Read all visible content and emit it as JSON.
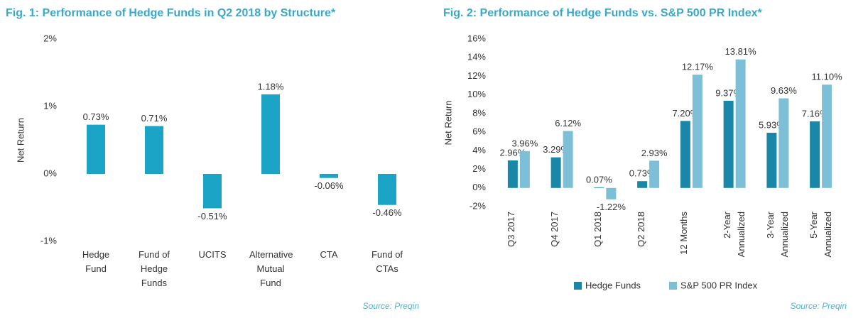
{
  "chart_data": [
    {
      "type": "bar",
      "title": "Fig. 1: Performance of Hedge Funds in Q2 2018 by Structure*",
      "ylabel": "Net Return",
      "categories": [
        "Hedge Fund",
        "Fund of Hedge Funds",
        "UCITS",
        "Alternative Mutual Fund",
        "CTA",
        "Fund of CTAs"
      ],
      "values": [
        0.73,
        0.71,
        -0.51,
        1.18,
        -0.06,
        -0.46
      ],
      "value_labels": [
        "0.73%",
        "0.71%",
        "-0.51%",
        "1.18%",
        "-0.06%",
        "-0.46%"
      ],
      "color": "#1ba4c6",
      "ylim": [
        -1,
        2
      ],
      "yticks": [
        {
          "value": 2,
          "label": "2%"
        },
        {
          "value": 1,
          "label": "1%"
        },
        {
          "value": 0,
          "label": "0%"
        },
        {
          "value": -1,
          "label": "-1%"
        }
      ],
      "source": "Source: Preqin"
    },
    {
      "type": "bar",
      "title": "Fig. 2: Performance of Hedge Funds vs. S&P 500 PR Index*",
      "ylabel": "Net Return",
      "categories": [
        "Q3 2017",
        "Q4 2017",
        "Q1 2018",
        "Q2 2018",
        "12 Months",
        "2-Year Annualized",
        "3-Year Annualized",
        "5-Year Annualized"
      ],
      "series": [
        {
          "name": "Hedge Funds",
          "color": "#1a87a8",
          "values": [
            2.96,
            3.29,
            0.07,
            0.73,
            7.2,
            9.37,
            5.93,
            7.16
          ],
          "value_labels": [
            "2.96%",
            "3.29%",
            "0.07%",
            "0.73%",
            "7.20%",
            "9.37%",
            "5.93%",
            "7.16%"
          ]
        },
        {
          "name": "S&P 500 PR Index",
          "color": "#7dbfd7",
          "values": [
            3.96,
            6.12,
            -1.22,
            2.93,
            12.17,
            13.81,
            9.63,
            11.1
          ],
          "value_labels": [
            "3.96%",
            "6.12%",
            "-1.22%",
            "2.93%",
            "12.17%",
            "13.81%",
            "9.63%",
            "11.10%"
          ]
        }
      ],
      "ylim": [
        -2,
        16
      ],
      "yticks": [
        {
          "value": 16,
          "label": "16%"
        },
        {
          "value": 14,
          "label": "14%"
        },
        {
          "value": 12,
          "label": "12%"
        },
        {
          "value": 10,
          "label": "10%"
        },
        {
          "value": 8,
          "label": "8%"
        },
        {
          "value": 6,
          "label": "6%"
        },
        {
          "value": 4,
          "label": "4%"
        },
        {
          "value": 2,
          "label": "2%"
        },
        {
          "value": 0,
          "label": "0%"
        },
        {
          "value": -2,
          "label": "-2%"
        }
      ],
      "source": "Source: Preqin"
    }
  ]
}
